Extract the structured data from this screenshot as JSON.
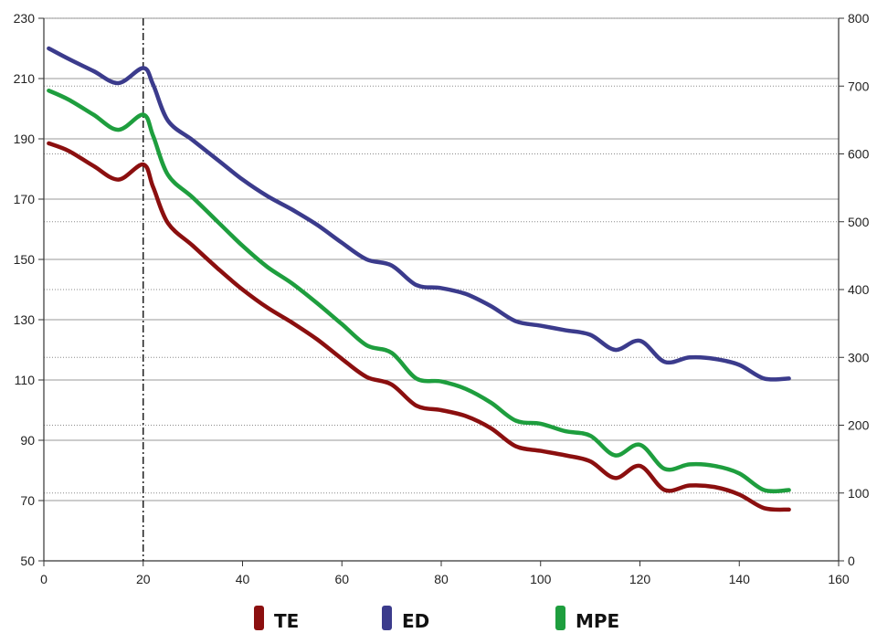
{
  "chart_data": {
    "type": "line",
    "title": "",
    "xlabel": "",
    "ylabel": "",
    "y2label": "",
    "xlim": [
      0,
      160
    ],
    "ylim": [
      50,
      230
    ],
    "y2lim": [
      0,
      800
    ],
    "x_ticks": [
      "0",
      "20",
      "40",
      "60",
      "80",
      "100",
      "120",
      "140",
      "160"
    ],
    "y_ticks": [
      "50",
      "70",
      "90",
      "110",
      "130",
      "150",
      "170",
      "190",
      "210",
      "230"
    ],
    "y2_ticks": [
      "0",
      "100",
      "200",
      "300",
      "400",
      "500",
      "600",
      "700",
      "800"
    ],
    "grid": "horizontal",
    "legend_position": "bottom",
    "reference_line_x": 20,
    "series": [
      {
        "name": "TE",
        "color": "#8b0f0f",
        "axis": "left",
        "x": [
          1,
          5,
          10,
          15,
          20,
          22,
          25,
          30,
          35,
          40,
          45,
          50,
          55,
          60,
          65,
          70,
          75,
          80,
          85,
          90,
          95,
          100,
          105,
          110,
          115,
          120,
          125,
          130,
          135,
          140,
          145,
          150
        ],
        "values": [
          188.5,
          186,
          181,
          176.5,
          181.5,
          174,
          162,
          154.5,
          147,
          140,
          134,
          129,
          123.5,
          117,
          111,
          108.5,
          101.5,
          100,
          98,
          94,
          88,
          86.5,
          85,
          83,
          77.5,
          81.5,
          73.5,
          75,
          74.5,
          72,
          67.5,
          67
        ]
      },
      {
        "name": "ED",
        "color": "#3b3b8c",
        "axis": "left",
        "x": [
          1,
          5,
          10,
          15,
          20,
          22,
          25,
          30,
          35,
          40,
          45,
          50,
          55,
          60,
          65,
          70,
          75,
          80,
          85,
          90,
          95,
          100,
          105,
          110,
          115,
          120,
          125,
          130,
          135,
          140,
          145,
          150
        ],
        "values": [
          220,
          216.5,
          212.5,
          208.5,
          213.5,
          208,
          196,
          189.5,
          183,
          176.5,
          171,
          166.5,
          161.5,
          155.5,
          150,
          148,
          141.5,
          140.5,
          138.5,
          134.5,
          129.5,
          128,
          126.5,
          125,
          120,
          123,
          116,
          117.5,
          117,
          115,
          110.5,
          110.5
        ]
      },
      {
        "name": "MPE",
        "color": "#1e9e3e",
        "axis": "left",
        "x": [
          1,
          5,
          10,
          15,
          20,
          22,
          25,
          30,
          35,
          40,
          45,
          50,
          55,
          60,
          65,
          70,
          75,
          80,
          85,
          90,
          95,
          100,
          105,
          110,
          115,
          120,
          125,
          130,
          135,
          140,
          145,
          150
        ],
        "values": [
          206,
          203,
          198,
          193,
          198,
          191,
          178,
          170.5,
          162.5,
          154.5,
          147.5,
          142,
          135.5,
          128.5,
          121.5,
          119,
          110.5,
          109.5,
          107,
          102.5,
          96.5,
          95.5,
          93,
          91.5,
          85,
          88.5,
          80.5,
          82,
          81.5,
          79,
          73.5,
          73.5
        ]
      }
    ]
  }
}
